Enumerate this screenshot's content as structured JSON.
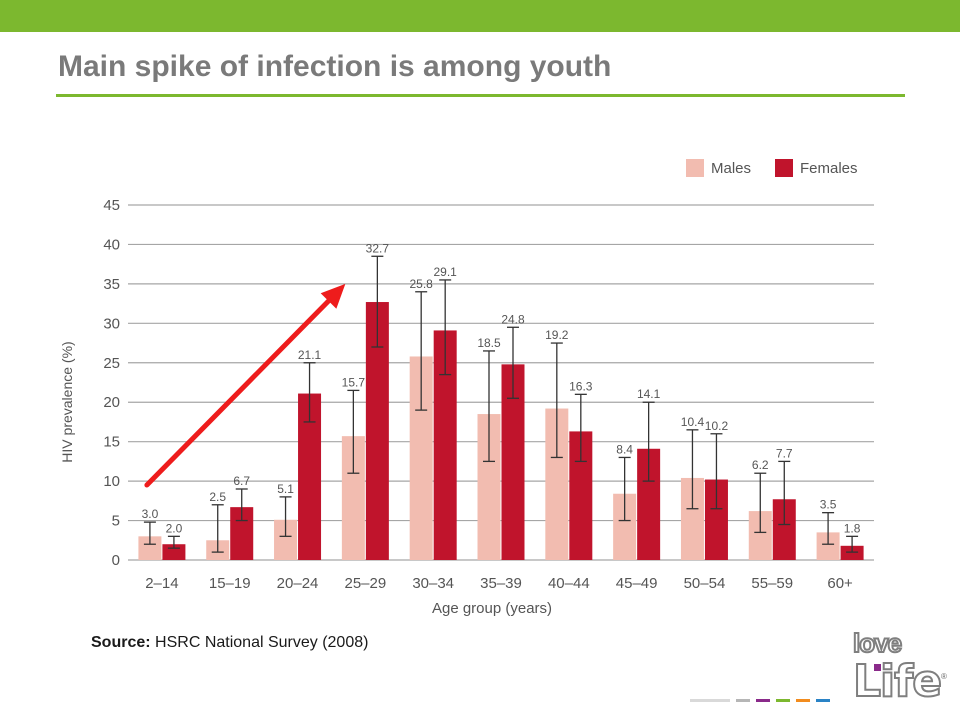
{
  "slide": {
    "title": "Main spike of infection is among youth",
    "source_label": "Source:",
    "source_text": "HSRC National Survey (2008)",
    "accent_color": "#7cb82f",
    "logo_line1": "love",
    "logo_line2": "Life",
    "logo_mark": "®"
  },
  "annotation": {
    "type": "arrow",
    "color": "#ee1c1c",
    "from": {
      "category": "2–14",
      "y": 9.5
    },
    "to": {
      "category": "25–29",
      "y": 35
    }
  },
  "chart_data": {
    "type": "bar",
    "categories": [
      "2–14",
      "15–19",
      "20–24",
      "25–29",
      "30–34",
      "35–39",
      "40–44",
      "45–49",
      "50–54",
      "55–59",
      "60+"
    ],
    "series": [
      {
        "name": "Males",
        "color": "#f2bcb0",
        "values": [
          3.0,
          2.5,
          5.1,
          15.7,
          25.8,
          18.5,
          19.2,
          8.4,
          10.4,
          6.2,
          3.5
        ],
        "labels": [
          "3.0",
          "2.5",
          "5.1",
          "15.7",
          "25.8",
          "18.5",
          "19.2",
          "8.4",
          "10.4",
          "6.2",
          "3.5"
        ],
        "error_low": [
          2.0,
          1.0,
          3.0,
          11.0,
          19.0,
          12.5,
          13.0,
          5.0,
          6.5,
          3.5,
          2.0
        ],
        "error_high": [
          4.8,
          7.0,
          8.0,
          21.5,
          34.0,
          26.5,
          27.5,
          13.0,
          16.5,
          11.0,
          6.0
        ]
      },
      {
        "name": "Females",
        "color": "#c0142c",
        "values": [
          2.0,
          6.7,
          21.1,
          32.7,
          29.1,
          24.8,
          16.3,
          14.1,
          10.2,
          7.7,
          1.8
        ],
        "labels": [
          "2.0",
          "6.7",
          "21.1",
          "32.7",
          "29.1",
          "24.8",
          "16.3",
          "14.1",
          "10.2",
          "7.7",
          "1.8"
        ],
        "error_low": [
          1.5,
          5.0,
          17.5,
          27.0,
          23.5,
          20.5,
          12.5,
          10.0,
          6.5,
          4.5,
          1.0
        ],
        "error_high": [
          3.0,
          9.0,
          25.0,
          38.5,
          35.5,
          29.5,
          21.0,
          20.0,
          16.0,
          12.5,
          3.0
        ]
      }
    ],
    "xlabel": "Age group (years)",
    "ylabel": "HIV prevalence (%)",
    "ylim": [
      0,
      45
    ],
    "yticks": [
      0,
      5,
      10,
      15,
      20,
      25,
      30,
      35,
      40,
      45
    ],
    "grid": true,
    "legend": "top-right"
  }
}
